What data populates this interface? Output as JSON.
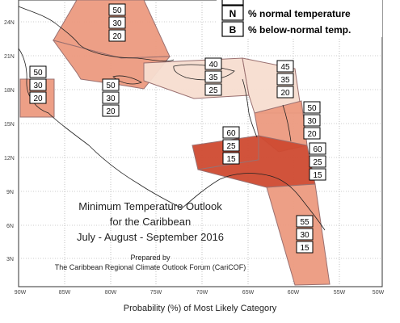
{
  "map": {
    "lat_labels": [
      "24N",
      "21N",
      "18N",
      "15N",
      "12N",
      "9N",
      "6N",
      "3N"
    ],
    "lon_labels": [
      "90W",
      "85W",
      "80W",
      "75W",
      "70W",
      "65W",
      "60W",
      "55W",
      "50W"
    ],
    "legend": [
      {
        "letter": "N",
        "text": "% normal temperature"
      },
      {
        "letter": "B",
        "text": "% below-normal temp."
      }
    ],
    "title_lines": [
      "Minimum Temperature Outlook",
      "for the Caribbean",
      "July - August - September 2016"
    ],
    "credit_lines": [
      "Prepared by",
      "The Caribbean Regional Climate Outlook Forum (CariCOF)"
    ],
    "region_colors": {
      "light": "#f7ddd0",
      "medium": "#ec9a80",
      "dark": "#cf4a30"
    },
    "probability_boxes": [
      {
        "id": "bahamas",
        "values": [
          "50",
          "30",
          "20"
        ]
      },
      {
        "id": "belize",
        "values": [
          "50",
          "30",
          "20"
        ]
      },
      {
        "id": "jamaica-cuba",
        "values": [
          "50",
          "30",
          "20"
        ]
      },
      {
        "id": "hispaniola",
        "values": [
          "40",
          "35",
          "25"
        ]
      },
      {
        "id": "leewards",
        "values": [
          "45",
          "35",
          "20"
        ]
      },
      {
        "id": "windwards",
        "values": [
          "50",
          "30",
          "20"
        ]
      },
      {
        "id": "abc-islands",
        "values": [
          "60",
          "25",
          "15"
        ]
      },
      {
        "id": "trinidad",
        "values": [
          "60",
          "25",
          "15"
        ]
      },
      {
        "id": "guianas",
        "values": [
          "55",
          "30",
          "15"
        ]
      }
    ]
  },
  "footer": "Probability (%) of Most Likely Category"
}
